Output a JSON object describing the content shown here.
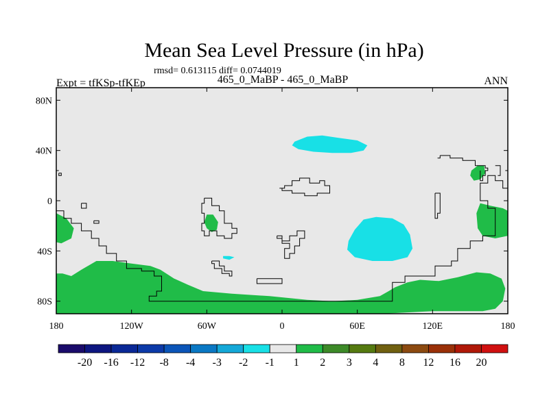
{
  "chart_data": {
    "type": "heatmap",
    "title": "Mean Sea Level Pressure (in hPa)",
    "stats": "rmsd= 0.613115 diff= 0.0744019",
    "subtitle_left": "Expt = tfKSp-tfKEp",
    "subtitle_center": "465_0_MaBP - 465_0_MaBP",
    "subtitle_right": "ANN",
    "xlim": [
      -180,
      180
    ],
    "ylim": [
      -90,
      90
    ],
    "x_ticks": [
      {
        "value": -180,
        "label": "180"
      },
      {
        "value": -120,
        "label": "120W"
      },
      {
        "value": -60,
        "label": "60W"
      },
      {
        "value": 0,
        "label": "0"
      },
      {
        "value": 60,
        "label": "60E"
      },
      {
        "value": 120,
        "label": "120E"
      },
      {
        "value": 180,
        "label": "180"
      }
    ],
    "y_ticks": [
      {
        "value": 80,
        "label": "80N"
      },
      {
        "value": 40,
        "label": "40N"
      },
      {
        "value": 0,
        "label": "0"
      },
      {
        "value": -40,
        "label": "40S"
      },
      {
        "value": -80,
        "label": "80S"
      }
    ],
    "background_color": "#e8e8e8",
    "colorbar": {
      "colors": [
        "#1a0b6b",
        "#0d1680",
        "#0a2896",
        "#0c3aa8",
        "#0b55b8",
        "#0a78c4",
        "#14a8d8",
        "#18e0e6",
        "#e8e8e8",
        "#20bc48",
        "#3d8a28",
        "#557a10",
        "#706010",
        "#8c4a10",
        "#9a3008",
        "#b01808",
        "#d01010"
      ],
      "labels": [
        "-20",
        "-16",
        "-12",
        "-8",
        "-4",
        "-3",
        "-2",
        "-1",
        "1",
        "2",
        "3",
        "4",
        "8",
        "12",
        "16",
        "20"
      ]
    },
    "regions": [
      {
        "category": "2",
        "color": "#20bc48",
        "polygon": [
          [
            -180,
            -10
          ],
          [
            -172,
            -14
          ],
          [
            -166,
            -22
          ],
          [
            -168,
            -30
          ],
          [
            -176,
            -34
          ],
          [
            -180,
            -33
          ]
        ]
      },
      {
        "category": "2",
        "color": "#20bc48",
        "polygon": [
          [
            -180,
            -58
          ],
          [
            -175,
            -58
          ],
          [
            -168,
            -60
          ],
          [
            -160,
            -55
          ],
          [
            -148,
            -48
          ],
          [
            -135,
            -48
          ],
          [
            -120,
            -50
          ],
          [
            -105,
            -52
          ],
          [
            -97,
            -55
          ],
          [
            -86,
            -62
          ],
          [
            -75,
            -67
          ],
          [
            -63,
            -72
          ],
          [
            -40,
            -74
          ],
          [
            -10,
            -76
          ],
          [
            20,
            -79
          ],
          [
            40,
            -80
          ],
          [
            60,
            -79
          ],
          [
            78,
            -76
          ],
          [
            85,
            -72
          ],
          [
            90,
            -69
          ],
          [
            100,
            -65
          ],
          [
            110,
            -63
          ],
          [
            125,
            -64
          ],
          [
            140,
            -61
          ],
          [
            155,
            -57
          ],
          [
            166,
            -58
          ],
          [
            175,
            -62
          ],
          [
            178,
            -70
          ],
          [
            176,
            -80
          ],
          [
            170,
            -86
          ],
          [
            160,
            -88
          ],
          [
            120,
            -88
          ],
          [
            80,
            -90
          ],
          [
            40,
            -90
          ],
          [
            0,
            -90
          ],
          [
            -60,
            -90
          ],
          [
            -120,
            -90
          ],
          [
            -180,
            -90
          ]
        ]
      },
      {
        "category": "2",
        "color": "#20bc48",
        "polygon": [
          [
            -60,
            -11
          ],
          [
            -55,
            -11
          ],
          [
            -51,
            -17
          ],
          [
            -52,
            -23
          ],
          [
            -56,
            -25
          ],
          [
            -60,
            -22
          ],
          [
            -62,
            -17
          ]
        ]
      },
      {
        "category": "2",
        "color": "#20bc48",
        "polygon": [
          [
            151,
            24
          ],
          [
            156,
            28
          ],
          [
            161,
            28
          ],
          [
            162,
            22
          ],
          [
            158,
            17
          ],
          [
            153,
            16
          ],
          [
            150,
            20
          ]
        ]
      },
      {
        "category": "2",
        "color": "#20bc48",
        "polygon": [
          [
            158,
            -2
          ],
          [
            166,
            -4
          ],
          [
            176,
            -6
          ],
          [
            180,
            -8
          ],
          [
            180,
            -28
          ],
          [
            170,
            -30
          ],
          [
            160,
            -28
          ],
          [
            156,
            -22
          ],
          [
            155,
            -10
          ]
        ]
      },
      {
        "category": "-1",
        "color": "#18e0e6",
        "polygon": [
          [
            10,
            47
          ],
          [
            20,
            51
          ],
          [
            32,
            52
          ],
          [
            45,
            50
          ],
          [
            60,
            48
          ],
          [
            68,
            44
          ],
          [
            65,
            40
          ],
          [
            55,
            38
          ],
          [
            40,
            38
          ],
          [
            25,
            39
          ],
          [
            13,
            41
          ],
          [
            8,
            44
          ]
        ]
      },
      {
        "category": "-1",
        "color": "#18e0e6",
        "polygon": [
          [
            65,
            -15
          ],
          [
            75,
            -13
          ],
          [
            88,
            -14
          ],
          [
            97,
            -19
          ],
          [
            102,
            -27
          ],
          [
            104,
            -38
          ],
          [
            100,
            -45
          ],
          [
            88,
            -48
          ],
          [
            72,
            -48
          ],
          [
            58,
            -45
          ],
          [
            52,
            -39
          ],
          [
            53,
            -32
          ],
          [
            58,
            -23
          ]
        ]
      },
      {
        "category": "-1",
        "color": "#18e0e6",
        "polygon": [
          [
            -47,
            -44
          ],
          [
            -42,
            -44
          ],
          [
            -38,
            -45
          ],
          [
            -42,
            -47
          ],
          [
            -47,
            -46
          ]
        ]
      }
    ],
    "outlines": [
      [
        [
          -180,
          -8
        ],
        [
          -174,
          -8
        ],
        [
          -174,
          -14
        ],
        [
          -168,
          -14
        ],
        [
          -168,
          -18
        ],
        [
          -160,
          -18
        ],
        [
          -160,
          -24
        ],
        [
          -152,
          -24
        ],
        [
          -152,
          -30
        ],
        [
          -146,
          -30
        ],
        [
          -146,
          -36
        ],
        [
          -140,
          -36
        ],
        [
          -140,
          -42
        ],
        [
          -132,
          -42
        ],
        [
          -132,
          -48
        ],
        [
          -124,
          -48
        ],
        [
          -124,
          -54
        ],
        [
          -112,
          -54
        ],
        [
          -112,
          -56
        ],
        [
          -102,
          -56
        ],
        [
          -102,
          -60
        ],
        [
          -96,
          -60
        ],
        [
          -96,
          -72
        ],
        [
          -100,
          -72
        ],
        [
          -100,
          -76
        ],
        [
          -106,
          -76
        ],
        [
          -106,
          -80
        ],
        [
          0,
          -80
        ],
        [
          60,
          -80
        ],
        [
          88,
          -80
        ],
        [
          88,
          -65
        ],
        [
          98,
          -65
        ],
        [
          98,
          -60
        ],
        [
          122,
          -60
        ],
        [
          122,
          -52
        ],
        [
          135,
          -52
        ],
        [
          135,
          -48
        ],
        [
          140,
          -48
        ],
        [
          140,
          -38
        ],
        [
          150,
          -38
        ],
        [
          150,
          -32
        ],
        [
          160,
          -32
        ],
        [
          160,
          -28
        ],
        [
          170,
          -28
        ],
        [
          170,
          -6
        ],
        [
          164,
          -6
        ],
        [
          164,
          0
        ],
        [
          158,
          0
        ],
        [
          158,
          14
        ],
        [
          164,
          14
        ],
        [
          164,
          20
        ],
        [
          170,
          20
        ],
        [
          170,
          16
        ],
        [
          176,
          16
        ],
        [
          176,
          10
        ],
        [
          180,
          10
        ]
      ],
      [
        [
          -178,
          22
        ],
        [
          -176,
          22
        ],
        [
          -176,
          20
        ],
        [
          -178,
          20
        ],
        [
          -178,
          22
        ]
      ],
      [
        [
          -180,
          24
        ],
        [
          -178,
          24
        ]
      ],
      [
        [
          -160,
          -2
        ],
        [
          -156,
          -2
        ],
        [
          -156,
          -6
        ],
        [
          -160,
          -6
        ],
        [
          -160,
          -2
        ]
      ],
      [
        [
          -150,
          -16
        ],
        [
          -146,
          -16
        ],
        [
          -146,
          -18
        ],
        [
          -150,
          -18
        ],
        [
          -150,
          -16
        ]
      ],
      [
        [
          -62,
          2
        ],
        [
          -56,
          2
        ],
        [
          -56,
          -4
        ],
        [
          -50,
          -4
        ],
        [
          -50,
          -8
        ],
        [
          -46,
          -8
        ],
        [
          -46,
          -18
        ],
        [
          -40,
          -18
        ],
        [
          -40,
          -22
        ],
        [
          -36,
          -22
        ],
        [
          -36,
          -26
        ],
        [
          -40,
          -26
        ],
        [
          -40,
          -30
        ],
        [
          -46,
          -30
        ],
        [
          -46,
          -28
        ],
        [
          -52,
          -28
        ],
        [
          -52,
          -24
        ],
        [
          -58,
          -24
        ],
        [
          -58,
          -28
        ],
        [
          -62,
          -28
        ],
        [
          -62,
          -24
        ],
        [
          -64,
          -24
        ],
        [
          -64,
          -18
        ],
        [
          -62,
          -18
        ],
        [
          -62,
          -10
        ],
        [
          -64,
          -10
        ],
        [
          -64,
          -2
        ],
        [
          -62,
          -2
        ],
        [
          -62,
          2
        ]
      ],
      [
        [
          -56,
          -48
        ],
        [
          -50,
          -48
        ],
        [
          -50,
          -52
        ],
        [
          -46,
          -52
        ],
        [
          -46,
          -56
        ],
        [
          -40,
          -56
        ],
        [
          -40,
          -60
        ],
        [
          -42,
          -60
        ],
        [
          -42,
          -58
        ],
        [
          -48,
          -58
        ],
        [
          -48,
          -54
        ],
        [
          -54,
          -54
        ],
        [
          -54,
          -50
        ],
        [
          -56,
          -50
        ],
        [
          -56,
          -48
        ]
      ],
      [
        [
          -2,
          10
        ],
        [
          2,
          10
        ],
        [
          2,
          12
        ],
        [
          8,
          12
        ],
        [
          8,
          16
        ],
        [
          14,
          16
        ],
        [
          14,
          18
        ],
        [
          22,
          18
        ],
        [
          22,
          14
        ],
        [
          30,
          14
        ],
        [
          30,
          16
        ],
        [
          34,
          16
        ],
        [
          34,
          12
        ],
        [
          38,
          12
        ],
        [
          38,
          6
        ],
        [
          28,
          6
        ],
        [
          28,
          4
        ],
        [
          18,
          4
        ],
        [
          18,
          6
        ],
        [
          8,
          6
        ],
        [
          8,
          8
        ],
        [
          0,
          8
        ],
        [
          0,
          10
        ]
      ],
      [
        [
          -4,
          -28
        ],
        [
          0,
          -28
        ],
        [
          0,
          -32
        ],
        [
          6,
          -32
        ],
        [
          6,
          -28
        ],
        [
          12,
          -28
        ],
        [
          12,
          -24
        ],
        [
          18,
          -24
        ],
        [
          18,
          -30
        ],
        [
          14,
          -30
        ],
        [
          14,
          -36
        ],
        [
          10,
          -36
        ],
        [
          10,
          -42
        ],
        [
          6,
          -42
        ],
        [
          6,
          -46
        ],
        [
          2,
          -46
        ],
        [
          2,
          -38
        ],
        [
          6,
          -38
        ],
        [
          6,
          -34
        ],
        [
          0,
          -34
        ],
        [
          0,
          -30
        ],
        [
          -4,
          -30
        ],
        [
          -4,
          -28
        ]
      ],
      [
        [
          -20,
          -62
        ],
        [
          0,
          -62
        ],
        [
          0,
          -66
        ],
        [
          -20,
          -66
        ],
        [
          -20,
          -62
        ]
      ],
      [
        [
          126,
          36
        ],
        [
          134,
          36
        ],
        [
          134,
          34
        ],
        [
          144,
          34
        ],
        [
          144,
          32
        ],
        [
          154,
          32
        ],
        [
          154,
          28
        ],
        [
          162,
          28
        ],
        [
          162,
          26
        ],
        [
          164,
          26
        ],
        [
          164,
          24
        ],
        [
          162,
          24
        ],
        [
          162,
          20
        ],
        [
          160,
          20
        ],
        [
          160,
          16
        ],
        [
          158,
          16
        ],
        [
          158,
          24
        ]
      ],
      [
        [
          124,
          34
        ],
        [
          126,
          34
        ],
        [
          126,
          36
        ]
      ],
      [
        [
          122,
          6
        ],
        [
          126,
          6
        ],
        [
          126,
          -10
        ],
        [
          124,
          -10
        ],
        [
          124,
          -14
        ],
        [
          122,
          -14
        ],
        [
          122,
          6
        ]
      ],
      [
        [
          170,
          28
        ],
        [
          174,
          28
        ],
        [
          174,
          20
        ],
        [
          172,
          20
        ]
      ],
      [
        [
          178,
          24
        ],
        [
          180,
          24
        ]
      ]
    ]
  }
}
